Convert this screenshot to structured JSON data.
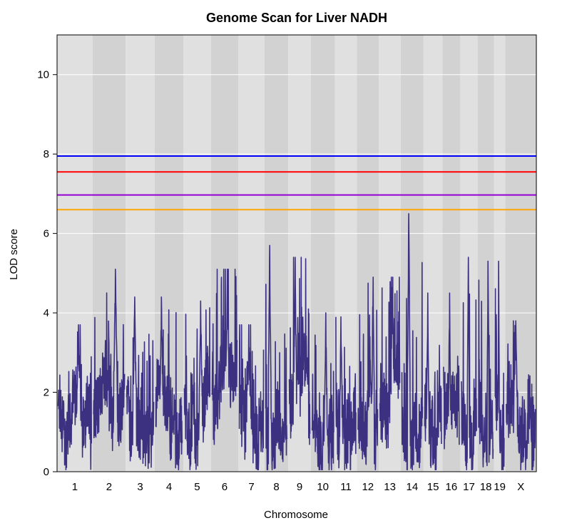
{
  "chart_data": {
    "type": "line",
    "title": "Genome Scan for Liver NADH",
    "xlabel": "Chromosome",
    "ylabel": "LOD score",
    "ylim": [
      0,
      11
    ],
    "yticks": [
      0,
      2,
      4,
      6,
      8,
      10
    ],
    "grid": true,
    "background_colors": [
      "#e0e0e0",
      "#d2d2d2"
    ],
    "series_color": "#3b3180",
    "chromosomes": [
      {
        "name": "1",
        "length": 195,
        "peak": 3.7
      },
      {
        "name": "2",
        "length": 182,
        "peak": 5.1
      },
      {
        "name": "3",
        "length": 160,
        "peak": 4.4
      },
      {
        "name": "4",
        "length": 157,
        "peak": 4.4
      },
      {
        "name": "5",
        "length": 152,
        "peak": 4.3
      },
      {
        "name": "6",
        "length": 150,
        "peak": 5.1
      },
      {
        "name": "7",
        "length": 145,
        "peak": 3.7
      },
      {
        "name": "8",
        "length": 130,
        "peak": 5.7
      },
      {
        "name": "9",
        "length": 125,
        "peak": 5.4
      },
      {
        "name": "10",
        "length": 131,
        "peak": 4.0
      },
      {
        "name": "11",
        "length": 122,
        "peak": 3.9
      },
      {
        "name": "12",
        "length": 120,
        "peak": 4.9
      },
      {
        "name": "13",
        "length": 121,
        "peak": 4.9
      },
      {
        "name": "14",
        "length": 125,
        "peak": 6.5
      },
      {
        "name": "15",
        "length": 104,
        "peak": 4.5
      },
      {
        "name": "16",
        "length": 98,
        "peak": 4.5
      },
      {
        "name": "17",
        "length": 95,
        "peak": 5.4
      },
      {
        "name": "18",
        "length": 91,
        "peak": 5.3
      },
      {
        "name": "19",
        "length": 61,
        "peak": 5.3
      },
      {
        "name": "X",
        "length": 171,
        "peak": 3.8
      }
    ],
    "thresholds": [
      {
        "value": 7.95,
        "color": "#0000ff"
      },
      {
        "value": 7.55,
        "color": "#ff0000"
      },
      {
        "value": 6.97,
        "color": "#9400d3"
      },
      {
        "value": 6.6,
        "color": "#ffa500"
      }
    ]
  }
}
